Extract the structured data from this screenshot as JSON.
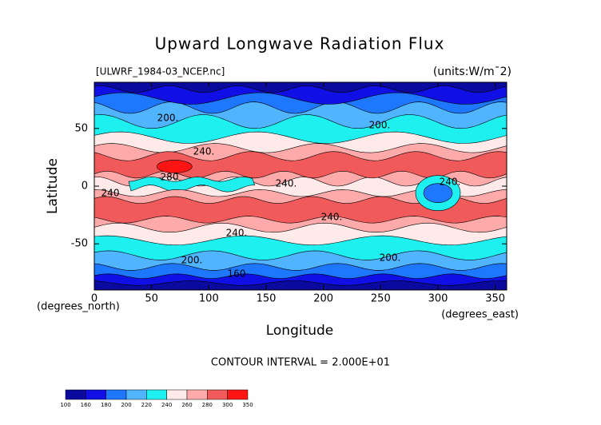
{
  "chart_data": {
    "type": "contour",
    "title": "Upward Longwave Radiation Flux",
    "subtitle": "[ULWRF_1984-03_NCEP.nc]",
    "units": "(units:W/m¯2)",
    "x_label": "Longitude",
    "y_label": "Latitude",
    "x_unit_label": "(degrees_east)",
    "y_unit_label": "(degrees_north)",
    "note": "CONTOUR INTERVAL = 2.000E+01",
    "xlim": [
      0,
      360
    ],
    "xticks": [
      0,
      50,
      100,
      150,
      200,
      250,
      300,
      350
    ],
    "ylim": [
      -90,
      90
    ],
    "yticks": [
      -50,
      0,
      50
    ],
    "colorbar": {
      "levels": [
        100,
        160,
        180,
        200,
        220,
        240,
        260,
        280,
        300,
        350
      ],
      "colors": [
        "#0a0a9e",
        "#1010e6",
        "#1e78ff",
        "#50b4ff",
        "#1ef0f0",
        "#ffeaea",
        "#ffaaaa",
        "#f05a5a",
        "#ff1414"
      ]
    },
    "contour_labels": [
      "200.",
      "200.",
      "240.",
      "240.",
      "240.",
      "240.",
      "200.",
      "200.",
      "160",
      "280",
      "240.",
      "240"
    ]
  }
}
